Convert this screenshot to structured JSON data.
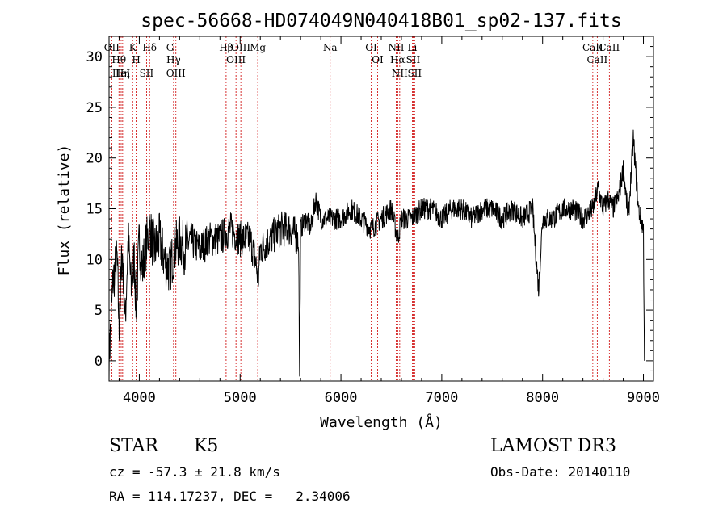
{
  "chart_data": {
    "type": "line",
    "title": "spec-56668-HD074049N040418B01_sp02-137.fits",
    "xlabel": "Wavelength (Å)",
    "ylabel": "Flux (relative)",
    "xlim": [
      3700,
      9100
    ],
    "ylim": [
      -2,
      32
    ],
    "xticks": [
      4000,
      5000,
      6000,
      7000,
      8000,
      9000
    ],
    "yticks": [
      0,
      5,
      10,
      15,
      20,
      25,
      30
    ],
    "grid": false,
    "series": [
      {
        "x": [
          3700,
          3740,
          3780,
          3800,
          3830,
          3860,
          3890,
          3920,
          3950,
          3970,
          4000,
          4030,
          4060,
          4100,
          4150,
          4200,
          4250,
          4300,
          4350,
          4400,
          4450,
          4500,
          4600,
          4700,
          4800,
          4900,
          5000,
          5100,
          5150,
          5180,
          5200,
          5300,
          5400,
          5500,
          5580,
          5590,
          5600,
          5650,
          5700,
          5750,
          5800,
          5900,
          6000,
          6100,
          6200,
          6300,
          6400,
          6500,
          6563,
          6600,
          6700,
          6800,
          6900,
          7000,
          7100,
          7200,
          7300,
          7400,
          7500,
          7600,
          7700,
          7800,
          7900,
          7960,
          8000,
          8100,
          8200,
          8300,
          8400,
          8500,
          8550,
          8600,
          8650,
          8700,
          8750,
          8800,
          8850,
          8900,
          8950,
          9000,
          9010
        ],
        "y": [
          0,
          8,
          10,
          3,
          11,
          4,
          12,
          7,
          10,
          5,
          12,
          9,
          11,
          13,
          11,
          12,
          10,
          9,
          11,
          12,
          11,
          12,
          11,
          12,
          12,
          13,
          12,
          12,
          10,
          8,
          11,
          12,
          13,
          13,
          12,
          -2,
          13,
          14,
          13,
          16,
          14,
          14,
          14,
          15,
          14,
          13,
          14,
          15,
          12,
          14,
          14,
          15,
          15,
          14,
          15,
          15,
          14,
          15,
          15,
          14,
          15,
          14,
          15,
          7,
          14,
          14,
          15,
          15,
          14,
          15,
          17,
          15,
          16,
          15,
          16,
          19,
          14,
          22,
          15,
          13,
          0
        ]
      }
    ],
    "lines": [
      {
        "label": "Hθ",
        "x": 3798
      },
      {
        "label": "OII",
        "x": 3727
      },
      {
        "label": "HeI",
        "x": 3820
      },
      {
        "label": "K",
        "x": 3934
      },
      {
        "label": "H",
        "x": 3969
      },
      {
        "label": "Hη",
        "x": 3835
      },
      {
        "label": "Hδ",
        "x": 4102
      },
      {
        "label": "SII",
        "x": 4072
      },
      {
        "label": "OIII",
        "x": 4363
      },
      {
        "label": "Hγ",
        "x": 4340
      },
      {
        "label": "G",
        "x": 4305
      },
      {
        "label": "Hβ",
        "x": 4861
      },
      {
        "label": "OIII",
        "x": 4959
      },
      {
        "label": "OIII",
        "x": 5007
      },
      {
        "label": "Mg",
        "x": 5175
      },
      {
        "label": "Na",
        "x": 5893
      },
      {
        "label": "OI",
        "x": 6300
      },
      {
        "label": "OI",
        "x": 6364
      },
      {
        "label": "Hα",
        "x": 6563
      },
      {
        "label": "NII",
        "x": 6548
      },
      {
        "label": "NII",
        "x": 6583
      },
      {
        "label": "SII",
        "x": 6716
      },
      {
        "label": "SII",
        "x": 6731
      },
      {
        "label": "Li",
        "x": 6708
      },
      {
        "label": "CaII",
        "x": 8498
      },
      {
        "label": "CaII",
        "x": 8542
      },
      {
        "label": "CaII",
        "x": 8662
      }
    ]
  },
  "info": {
    "class": "STAR",
    "subclass": "K5",
    "survey": "LAMOST DR3",
    "cz": "cz = -57.3 ± 21.8 km/s",
    "obs_date": "Obs-Date: 20140110",
    "radec": "RA = 114.17237, DEC =   2.34006"
  },
  "colors": {
    "axes": "#000000",
    "spectrum": "#000000",
    "lines": "#cc0000"
  }
}
